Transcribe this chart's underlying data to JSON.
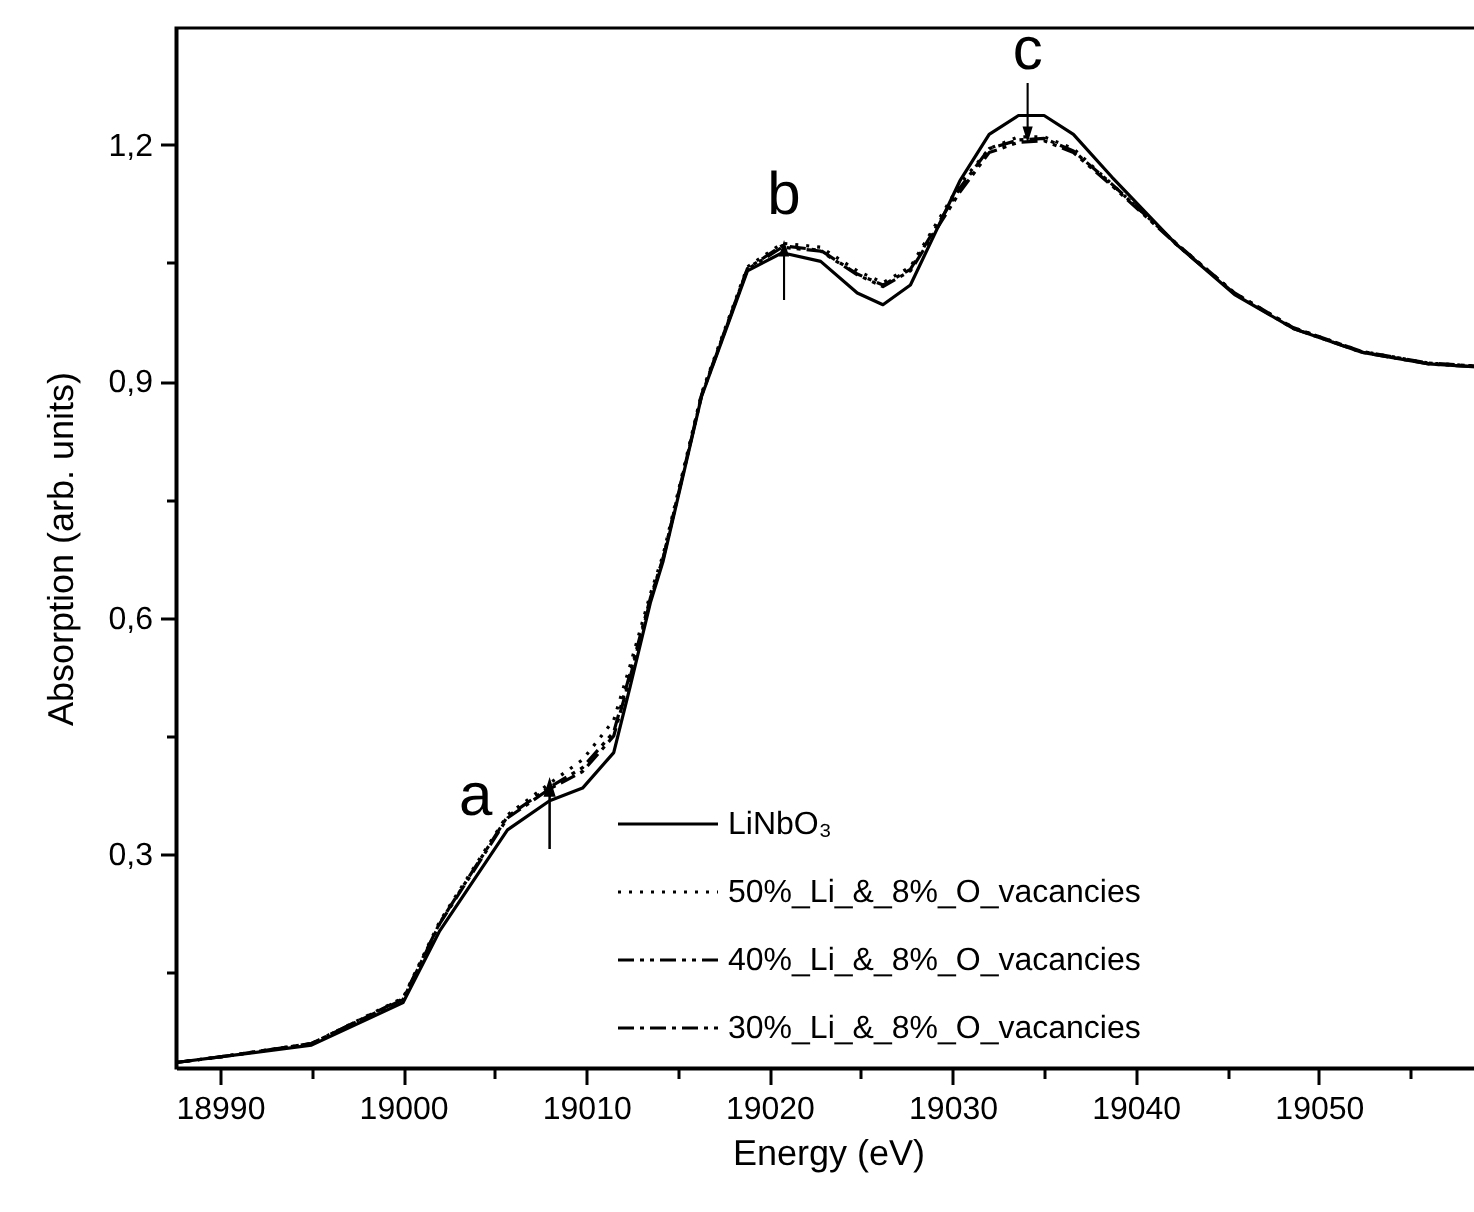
{
  "chart_data": {
    "type": "line",
    "xlabel": "Energy (eV)",
    "ylabel": "Absorption (arb. units)",
    "x": [
      18987.6,
      18990,
      18995,
      19000,
      19002,
      19005.7,
      19008,
      19009.8,
      19011.5,
      19012.4,
      19013.5,
      19014.2,
      19016.3,
      19018.8,
      19020.7,
      19022.8,
      19024.8,
      19026.2,
      19027.7,
      19030.4,
      19032,
      19033.6,
      19035,
      19036.6,
      19038.7,
      19042.2,
      19045.4,
      19048.6,
      19052.3,
      19056,
      19058.8
    ],
    "series": [
      {
        "name": "LiNbO₃",
        "color": "#000000",
        "line_style": "solid",
        "values": [
          0.036,
          0.043,
          0.058,
          0.112,
          0.203,
          0.331,
          0.368,
          0.384,
          0.429,
          0.513,
          0.619,
          0.672,
          0.881,
          1.04,
          1.063,
          1.052,
          1.012,
          0.997,
          1.022,
          1.154,
          1.213,
          1.237,
          1.237,
          1.213,
          1.159,
          1.074,
          1.01,
          0.967,
          0.937,
          0.922,
          0.918
        ]
      },
      {
        "name": "50%_Li_&_8%_O_vacancies",
        "color": "#000000",
        "line_style": "dotted",
        "values": [
          0.036,
          0.043,
          0.06,
          0.118,
          0.215,
          0.35,
          0.39,
          0.42,
          0.47,
          0.54,
          0.63,
          0.68,
          0.885,
          1.045,
          1.075,
          1.07,
          1.04,
          1.025,
          1.045,
          1.15,
          1.195,
          1.21,
          1.21,
          1.195,
          1.15,
          1.075,
          1.012,
          0.968,
          0.938,
          0.923,
          0.919
        ]
      },
      {
        "name": "40%_Li_&_8%_O_vacancies",
        "color": "#000000",
        "line_style": "dashdotdot",
        "values": [
          0.036,
          0.043,
          0.06,
          0.117,
          0.213,
          0.348,
          0.385,
          0.41,
          0.455,
          0.53,
          0.625,
          0.676,
          0.882,
          1.042,
          1.07,
          1.065,
          1.035,
          1.02,
          1.04,
          1.14,
          1.19,
          1.203,
          1.205,
          1.19,
          1.148,
          1.074,
          1.011,
          0.967,
          0.937,
          0.922,
          0.918
        ]
      },
      {
        "name": "30%_Li_&_8%_O_vacancies",
        "color": "#000000",
        "line_style": "dashdot",
        "values": [
          0.036,
          0.043,
          0.06,
          0.116,
          0.212,
          0.346,
          0.383,
          0.405,
          0.45,
          0.525,
          0.622,
          0.675,
          0.883,
          1.043,
          1.072,
          1.066,
          1.036,
          1.022,
          1.042,
          1.145,
          1.195,
          1.206,
          1.208,
          1.192,
          1.15,
          1.075,
          1.012,
          0.968,
          0.938,
          0.923,
          0.919
        ]
      }
    ],
    "xlim": [
      18987.6,
      19058.8
    ],
    "xticks": [
      18990,
      {
        "value": 18995,
        "label": null
      },
      19000,
      {
        "value": 19005,
        "label": null
      },
      19010,
      {
        "value": 19015,
        "label": null
      },
      19020,
      {
        "value": 19025,
        "label": null
      },
      19030,
      {
        "value": 19035,
        "label": null
      },
      19040,
      {
        "value": 19045,
        "label": null
      },
      19050,
      {
        "value": 19055,
        "label": null
      }
    ],
    "ylim": [
      0.029,
      1.348
    ],
    "yticks": [
      {
        "value": 0.15,
        "label": null
      },
      {
        "value": 0.3,
        "label": "0,3"
      },
      {
        "value": 0.45,
        "label": null
      },
      {
        "value": 0.6,
        "label": "0,6"
      },
      {
        "value": 0.75,
        "label": null
      },
      {
        "value": 0.9,
        "label": "0,9"
      },
      {
        "value": 1.05,
        "label": null
      },
      {
        "value": 1.2,
        "label": "1,2"
      }
    ],
    "annotations": [
      {
        "text": "a",
        "x": 19008,
        "y": 0.398
      },
      {
        "text": "b",
        "x": 19020.8,
        "y": 1.079
      },
      {
        "text": "c",
        "x": 19034.1,
        "y": 1.202
      }
    ],
    "legend": "bottom right",
    "grid": false,
    "marker": "none"
  }
}
